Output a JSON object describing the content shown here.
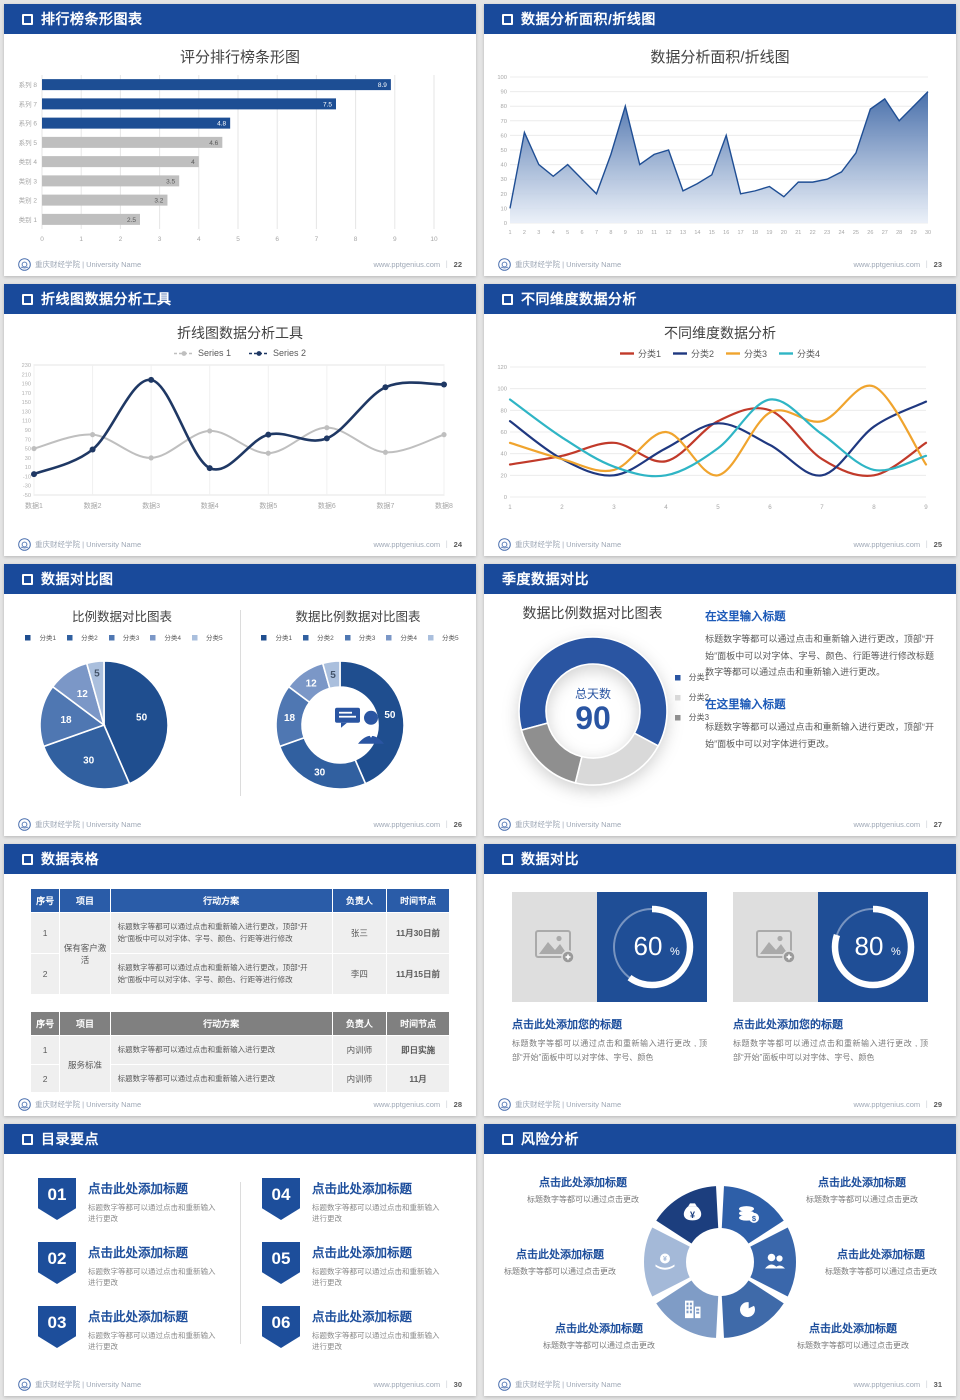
{
  "footer": {
    "brand": "重庆财经学院 | University Name",
    "site": "www.pptgenius.com",
    "divider": "｜"
  },
  "slides": [
    {
      "header": "排行榜条形图表",
      "page": "22",
      "header_icon": true
    },
    {
      "header": "数据分析面积/折线图",
      "page": "23",
      "header_icon": true
    },
    {
      "header": "折线图数据分析工具",
      "page": "24",
      "header_icon": true
    },
    {
      "header": "不同维度数据分析",
      "page": "25",
      "header_icon": true
    },
    {
      "header": "数据对比图",
      "page": "26",
      "header_icon": true
    },
    {
      "header": "季度数据对比",
      "page": "27",
      "header_icon": false,
      "text_blocks": [
        {
          "title": "在这里输入标题",
          "body": "标题数字等都可以通过点击和重新输入进行更改，顶部“开始”面板中可以对字体、字号、颜色、行距等进行修改标题数字等都可以通过点击和重新输入进行更改。"
        },
        {
          "title": "在这里输入标题",
          "body": "标题数字等都可以通过点击和重新输入进行更改，顶部“开始”面板中可以对字体进行更改。"
        }
      ]
    },
    {
      "header": "数据表格",
      "page": "28",
      "header_icon": true,
      "tables": [
        {
          "style": "blue",
          "columns": [
            "序号",
            "项目",
            "行动方案",
            "负责人",
            "时间节点"
          ],
          "widths": [
            "7%",
            "12%",
            "53%",
            "13%",
            "15%"
          ],
          "rows": [
            {
              "cells": [
                {
                  "t": "1",
                  "c": "cnum"
                },
                {
                  "t": "保有客户激活",
                  "c": "cproj",
                  "rowspan": 2
                },
                {
                  "t": "标题数字等都可以通过点击和重新输入进行更改，顶部“开始”面板中可以对字体、字号、颜色、行距等进行修改",
                  "c": "cact"
                },
                {
                  "t": "张三",
                  "c": "cwho"
                },
                {
                  "t": "11月30日前",
                  "c": "cwhen"
                }
              ]
            },
            {
              "cells": [
                {
                  "t": "2",
                  "c": "cnum"
                },
                {
                  "t": "标题数字等都可以通过点击和重新输入进行更改，顶部“开始”面板中可以对字体、字号、颜色、行距等进行修改",
                  "c": "cact"
                },
                {
                  "t": "李四",
                  "c": "cwho"
                },
                {
                  "t": "11月15日前",
                  "c": "cwhen"
                }
              ]
            }
          ]
        },
        {
          "style": "gray",
          "columns": [
            "序号",
            "项目",
            "行动方案",
            "负责人",
            "时间节点"
          ],
          "widths": [
            "7%",
            "12%",
            "53%",
            "13%",
            "15%"
          ],
          "rows": [
            {
              "cells": [
                {
                  "t": "1",
                  "c": "cnum"
                },
                {
                  "t": "服务标准",
                  "c": "cproj",
                  "rowspan": 2
                },
                {
                  "t": "标题数字等都可以通过点击和重新输入进行更改",
                  "c": "cact"
                },
                {
                  "t": "内训师",
                  "c": "cwho"
                },
                {
                  "t": "即日实施",
                  "c": "cwhen"
                }
              ]
            },
            {
              "cells": [
                {
                  "t": "2",
                  "c": "cnum"
                },
                {
                  "t": "标题数字等都可以通过点击和重新输入进行更改",
                  "c": "cact"
                },
                {
                  "t": "内训师",
                  "c": "cwho"
                },
                {
                  "t": "11月",
                  "c": "cwhen"
                }
              ]
            },
            {
              "cells": [
                {
                  "t": "3",
                  "c": "cnum"
                },
                {
                  "t": "销售技能",
                  "c": "cproj",
                  "rowspan": 2
                },
                {
                  "t": "标题数字等都可以通过点击和重新输入进行更改",
                  "c": "cact"
                },
                {
                  "t": "内训师",
                  "c": "cwho"
                },
                {
                  "t": "11月",
                  "c": "cwhen"
                }
              ]
            },
            {
              "cells": [
                {
                  "t": "4",
                  "c": "cnum"
                },
                {
                  "t": "标题数字等都可以通过点击和重新输入进行更改",
                  "c": "cact"
                },
                {
                  "t": "内训师",
                  "c": "cwho"
                },
                {
                  "t": "至少1次 /月",
                  "c": "cwhen"
                }
              ]
            }
          ]
        }
      ]
    },
    {
      "header": "数据对比",
      "page": "29",
      "header_icon": true,
      "cards": [
        {
          "percent": 60,
          "title": "点击此处添加您的标题",
          "body": "标题数字等都可以通过点击和重新输入进行更改 , 顶部“开始”面板中可以对字体、字号、颜色"
        },
        {
          "percent": 80,
          "title": "点击此处添加您的标题",
          "body": "标题数字等都可以通过点击和重新输入进行更改 , 顶部“开始”面板中可以对字体、字号、颜色"
        }
      ]
    },
    {
      "header": "目录要点",
      "page": "30",
      "header_icon": true,
      "items": [
        {
          "num": "01",
          "title": "点击此处添加标题",
          "body": "标题数字等都可以通过点击和重新输入进行更改"
        },
        {
          "num": "02",
          "title": "点击此处添加标题",
          "body": "标题数字等都可以通过点击和重新输入进行更改"
        },
        {
          "num": "03",
          "title": "点击此处添加标题",
          "body": "标题数字等都可以通过点击和重新输入进行更改"
        },
        {
          "num": "04",
          "title": "点击此处添加标题",
          "body": "标题数字等都可以通过点击和重新输入进行更改"
        },
        {
          "num": "05",
          "title": "点击此处添加标题",
          "body": "标题数字等都可以通过点击和重新输入进行更改"
        },
        {
          "num": "06",
          "title": "点击此处添加标题",
          "body": "标题数字等都可以通过点击和重新输入进行更改"
        }
      ]
    },
    {
      "header": "风险分析",
      "page": "31",
      "header_icon": true,
      "labels": [
        {
          "pos": "tl",
          "icon": "money-bag-icon",
          "title": "点击此处添加标题",
          "body": "标题数字等都可以通过点击更改"
        },
        {
          "pos": "tr",
          "icon": "coins-icon",
          "title": "点击此处添加标题",
          "body": "标题数字等都可以通过点击更改"
        },
        {
          "pos": "mr",
          "icon": "people-icon",
          "title": "点击此处添加标题",
          "body": "标题数字等都可以通过点击更改"
        },
        {
          "pos": "br",
          "icon": "pie-chart-icon",
          "title": "点击此处添加标题",
          "body": "标题数字等都可以通过点击更改"
        },
        {
          "pos": "bl",
          "icon": "building-icon",
          "title": "点击此处添加标题",
          "body": "标题数字等都可以通过点击更改"
        },
        {
          "pos": "ml",
          "icon": "wealth-hat-icon",
          "title": "点击此处添加标题",
          "body": "标题数字等都可以通过点击更改"
        }
      ]
    }
  ],
  "chart_data": [
    {
      "id": "ranking-bar",
      "type": "bar",
      "orientation": "horizontal",
      "title": "评分排行榜条形图",
      "categories": [
        "系列 8",
        "系列 7",
        "系列 6",
        "系列 5",
        "类别 4",
        "类别 3",
        "类别 2",
        "类别 1"
      ],
      "values": [
        8.9,
        7.5,
        4.8,
        4.6,
        4,
        3.5,
        3.2,
        2.5
      ],
      "bar_colors": [
        "#1d4e94",
        "#1d4e94",
        "#1d4e94",
        "#bfbfbf",
        "#bfbfbf",
        "#bfbfbf",
        "#bfbfbf",
        "#bfbfbf"
      ],
      "xlim": [
        0,
        10
      ],
      "xticks": [
        0,
        1,
        2,
        3,
        4,
        5,
        6,
        7,
        8,
        9,
        10
      ],
      "grid": true
    },
    {
      "id": "area",
      "type": "area",
      "title": "数据分析面积/折线图",
      "x": [
        1,
        2,
        3,
        4,
        5,
        6,
        7,
        8,
        9,
        10,
        11,
        12,
        13,
        14,
        15,
        16,
        17,
        18,
        19,
        20,
        21,
        22,
        23,
        24,
        25,
        26,
        27,
        28,
        29,
        30
      ],
      "values": [
        10,
        62,
        40,
        32,
        40,
        30,
        20,
        47,
        80,
        40,
        47,
        50,
        22,
        27,
        33,
        60,
        20,
        22,
        25,
        18,
        28,
        28,
        30,
        35,
        48,
        78,
        85,
        70,
        80,
        90
      ],
      "ylim": [
        0,
        100
      ],
      "ytick_step": 10,
      "line_color": "#1f4e94",
      "grid": true
    },
    {
      "id": "two-lines",
      "type": "line",
      "smooth": true,
      "markers": true,
      "title": "折线图数据分析工具",
      "categories": [
        "数据1",
        "数据2",
        "数据3",
        "数据4",
        "数据5",
        "数据6",
        "数据7",
        "数据8"
      ],
      "series": [
        {
          "name": "Series 1",
          "color": "#bfbfbf",
          "values": [
            50,
            80,
            30,
            88,
            40,
            95,
            42,
            80
          ]
        },
        {
          "name": "Series 2",
          "color": "#1f3864",
          "values": [
            -5,
            48,
            198,
            8,
            80,
            72,
            182,
            188
          ]
        }
      ],
      "ylim": [
        -50,
        230
      ],
      "ytick_step": 20,
      "legend_position": "top",
      "grid": true
    },
    {
      "id": "four-lines",
      "type": "line",
      "smooth": true,
      "markers": false,
      "title": "不同维度数据分析",
      "x": [
        1,
        2,
        3,
        4,
        5,
        6,
        7,
        8,
        9
      ],
      "series": [
        {
          "name": "分类1",
          "color": "#c13a2a",
          "values": [
            30,
            38,
            50,
            33,
            70,
            80,
            35,
            20,
            50
          ]
        },
        {
          "name": "分类2",
          "color": "#1f3880",
          "values": [
            70,
            35,
            20,
            45,
            68,
            48,
            20,
            65,
            88
          ]
        },
        {
          "name": "分类3",
          "color": "#f0a42e",
          "values": [
            50,
            35,
            25,
            60,
            20,
            78,
            70,
            102,
            30
          ]
        },
        {
          "name": "分类4",
          "color": "#2fb5c5",
          "values": [
            90,
            55,
            28,
            20,
            45,
            90,
            58,
            25,
            38
          ]
        }
      ],
      "ylim": [
        0,
        120
      ],
      "ytick_step": 20,
      "legend_position": "top",
      "grid": true
    },
    {
      "id": "pie",
      "type": "pie",
      "donut": false,
      "title": "比例数据对比图表",
      "labels": [
        "分类1",
        "分类2",
        "分类3",
        "分类4",
        "分类5"
      ],
      "values": [
        50,
        30,
        18,
        12,
        5
      ],
      "colors": [
        "#1f4e8f",
        "#3160a0",
        "#4f77b2",
        "#7b97c7",
        "#aabfdd"
      ],
      "legend_position": "top"
    },
    {
      "id": "donut",
      "type": "pie",
      "donut": true,
      "title": "数据比例数据对比图表",
      "labels": [
        "分类1",
        "分类2",
        "分类3",
        "分类4",
        "分类5"
      ],
      "values": [
        50,
        30,
        18,
        12,
        5
      ],
      "colors": [
        "#1f4e8f",
        "#3160a0",
        "#4f77b2",
        "#7b97c7",
        "#aabfdd"
      ],
      "center_icon": "consultant-icon",
      "legend_position": "top"
    },
    {
      "id": "quarter-donut",
      "type": "pie",
      "donut": true,
      "title": "数据比例数据对比图表",
      "labels": [
        "分类1",
        "分类2",
        "分类3"
      ],
      "values": [
        62,
        21,
        17
      ],
      "colors": [
        "#2a55a2",
        "#d9d9d9",
        "#8f8f8f"
      ],
      "start_angle": 255,
      "center_label": "总天数",
      "center_value": "90",
      "legend_position": "right"
    },
    {
      "id": "progress",
      "type": "progress",
      "values_pct": [
        60,
        80
      ],
      "ring_color": "#ffffff"
    }
  ]
}
